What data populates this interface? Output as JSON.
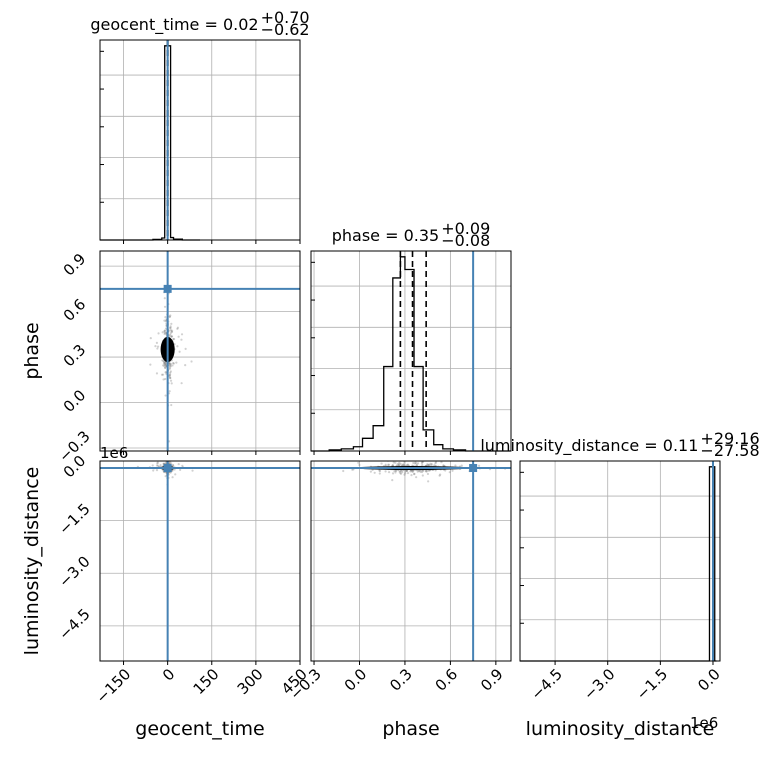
{
  "chart_data": {
    "type": "corner",
    "parameters": [
      "geocent_time",
      "phase",
      "luminosity_distance"
    ],
    "axis_labels": {
      "x": [
        "geocent_time",
        "phase",
        "luminosity_distance"
      ],
      "y": [
        "phase",
        "luminosity_distance"
      ]
    },
    "titles": [
      {
        "param": "geocent_time",
        "text": "geocent_time = 0.02",
        "plus": "+0.70",
        "minus": "−0.62"
      },
      {
        "param": "phase",
        "text": "phase = 0.35",
        "plus": "+0.09",
        "minus": "−0.08"
      },
      {
        "param": "luminosity_distance",
        "text": "luminosity_distance = 0.11",
        "plus": "+29.16",
        "minus": "−27.58"
      }
    ],
    "ranges": {
      "geocent_time": [
        -230,
        450
      ],
      "phase": [
        -0.32,
        1.0
      ],
      "luminosity_distance": [
        -5500000,
        200000
      ]
    },
    "ticks": {
      "geocent_time": {
        "values": [
          -150,
          0,
          150,
          300,
          450
        ],
        "labels": [
          "−150",
          "0",
          "150",
          "300",
          "450"
        ]
      },
      "phase": {
        "values": [
          -0.3,
          0.0,
          0.3,
          0.6,
          0.9
        ],
        "labels": [
          "−0.3",
          "0.0",
          "0.3",
          "0.6",
          "0.9"
        ]
      },
      "luminosity_distance": {
        "values": [
          -4500000,
          -3000000,
          -1500000,
          0
        ],
        "labels": [
          "−4.5",
          "−3.0",
          "−1.5",
          "0.0"
        ]
      }
    },
    "offset_text": {
      "luminosity_distance": "1e6"
    },
    "truths": {
      "geocent_time": 0,
      "phase": 0.75,
      "luminosity_distance": 0
    },
    "quantiles": {
      "geocent_time": [
        -0.6,
        0.02,
        0.72
      ],
      "phase": [
        0.27,
        0.35,
        0.44
      ],
      "luminosity_distance": [
        -27.47,
        0.11,
        29.27
      ]
    },
    "histograms": {
      "geocent_time": {
        "edges": [
          -230,
          -200,
          -170,
          -140,
          -110,
          -80,
          -50,
          -20,
          -10,
          0,
          10,
          20,
          50,
          80,
          110
        ],
        "counts": [
          0,
          0,
          0,
          0,
          0,
          0,
          0.3,
          1,
          96,
          96,
          1.2,
          0.4,
          0,
          0
        ]
      },
      "phase": {
        "edges": [
          -0.32,
          -0.2,
          -0.12,
          -0.04,
          0.02,
          0.09,
          0.16,
          0.22,
          0.27,
          0.3,
          0.36,
          0.42,
          0.49,
          0.55,
          0.62,
          0.7,
          1.0
        ],
        "counts": [
          0,
          0.5,
          1,
          2,
          6,
          12,
          40,
          82,
          92,
          86,
          40,
          10,
          3,
          1,
          0.5,
          0
        ]
      },
      "luminosity_distance": {
        "edges": [
          -5500000,
          -200000,
          -100000,
          0,
          50000,
          100000
        ],
        "counts": [
          0,
          0,
          93,
          93,
          0
        ]
      }
    },
    "grid": true,
    "y_hist_ticks_hidden": true
  }
}
